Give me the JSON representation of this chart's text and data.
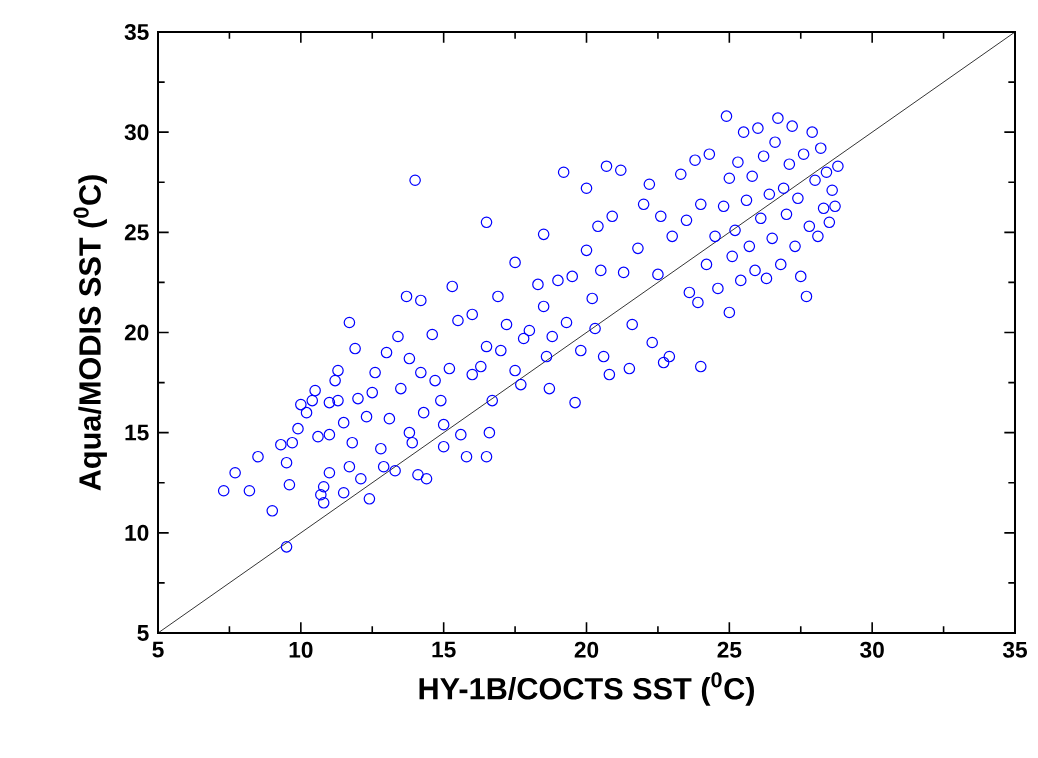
{
  "chart_data": {
    "type": "scatter",
    "xlabel": "HY-1B/COCTS SST ($^{0}$C)",
    "ylabel": "Aqua/MODIS SST ($^{0}$C)",
    "xlim": [
      5,
      35
    ],
    "ylim": [
      5,
      35
    ],
    "xticks": [
      5,
      10,
      15,
      20,
      25,
      30,
      35
    ],
    "yticks": [
      5,
      10,
      15,
      20,
      25,
      30,
      35
    ],
    "marker": "circle",
    "grid": false,
    "series": [
      {
        "color": "#0000ff",
        "x": [
          7.3,
          7.7,
          8.2,
          8.5,
          9.0,
          9.3,
          9.5,
          9.5,
          9.6,
          9.7,
          9.9,
          10.0,
          10.2,
          10.4,
          10.5,
          10.6,
          10.7,
          10.8,
          10.8,
          11.0,
          11.0,
          11.0,
          11.2,
          11.3,
          11.3,
          11.5,
          11.5,
          11.7,
          11.7,
          11.8,
          11.9,
          12.0,
          12.1,
          12.3,
          12.4,
          12.5,
          12.6,
          12.8,
          12.9,
          13.0,
          13.1,
          13.3,
          13.4,
          13.5,
          13.7,
          13.8,
          13.8,
          13.9,
          14.0,
          14.1,
          14.2,
          14.2,
          14.3,
          14.4,
          14.6,
          14.7,
          14.9,
          15.0,
          15.0,
          15.2,
          15.3,
          15.5,
          15.6,
          15.8,
          16.0,
          16.0,
          16.3,
          16.5,
          16.5,
          16.5,
          16.6,
          16.7,
          16.9,
          17.0,
          17.2,
          17.5,
          17.5,
          17.7,
          17.8,
          18.0,
          18.3,
          18.5,
          18.5,
          18.6,
          18.7,
          18.8,
          19.0,
          19.2,
          19.3,
          19.5,
          19.6,
          19.8,
          20.0,
          20.0,
          20.2,
          20.3,
          20.4,
          20.5,
          20.6,
          20.7,
          20.8,
          20.9,
          21.2,
          21.3,
          21.5,
          21.6,
          21.8,
          22.0,
          22.2,
          22.3,
          22.5,
          22.6,
          22.7,
          22.9,
          23.0,
          23.3,
          23.5,
          23.6,
          23.8,
          23.9,
          24.0,
          24.0,
          24.2,
          24.3,
          24.5,
          24.6,
          24.8,
          24.9,
          25.0,
          25.0,
          25.1,
          25.2,
          25.3,
          25.4,
          25.5,
          25.6,
          25.7,
          25.8,
          25.9,
          26.0,
          26.1,
          26.2,
          26.3,
          26.4,
          26.5,
          26.6,
          26.7,
          26.8,
          26.9,
          27.0,
          27.1,
          27.2,
          27.3,
          27.4,
          27.5,
          27.6,
          27.7,
          27.8,
          27.9,
          28.0,
          28.1,
          28.2,
          28.3,
          28.4,
          28.5,
          28.6,
          28.7,
          28.8
        ],
        "values": [
          12.1,
          13.0,
          12.1,
          13.8,
          11.1,
          14.4,
          9.3,
          13.5,
          12.4,
          14.5,
          15.2,
          16.4,
          16.0,
          16.6,
          17.1,
          14.8,
          11.9,
          12.3,
          11.5,
          13.0,
          14.9,
          16.5,
          17.6,
          18.1,
          16.6,
          12.0,
          15.5,
          20.5,
          13.3,
          14.5,
          19.2,
          16.7,
          12.7,
          15.8,
          11.7,
          17.0,
          18.0,
          14.2,
          13.3,
          19.0,
          15.7,
          13.1,
          19.8,
          17.2,
          21.8,
          18.7,
          15.0,
          14.5,
          27.6,
          12.9,
          21.6,
          18.0,
          16.0,
          12.7,
          19.9,
          17.6,
          16.6,
          15.4,
          14.3,
          18.2,
          22.3,
          20.6,
          14.9,
          13.8,
          17.9,
          20.9,
          18.3,
          25.5,
          19.3,
          13.8,
          15.0,
          16.6,
          21.8,
          19.1,
          20.4,
          23.5,
          18.1,
          17.4,
          19.7,
          20.1,
          22.4,
          24.9,
          21.3,
          18.8,
          17.2,
          19.8,
          22.6,
          28.0,
          20.5,
          22.8,
          16.5,
          19.1,
          24.1,
          27.2,
          21.7,
          20.2,
          25.3,
          23.1,
          18.8,
          28.3,
          17.9,
          25.8,
          28.1,
          23.0,
          18.2,
          20.4,
          24.2,
          26.4,
          27.4,
          19.5,
          22.9,
          25.8,
          18.5,
          18.8,
          24.8,
          27.9,
          25.6,
          22.0,
          28.6,
          21.5,
          18.3,
          26.4,
          23.4,
          28.9,
          24.8,
          22.2,
          26.3,
          30.8,
          21.0,
          27.7,
          23.8,
          25.1,
          28.5,
          22.6,
          30.0,
          26.6,
          24.3,
          27.8,
          23.1,
          30.2,
          25.7,
          28.8,
          22.7,
          26.9,
          24.7,
          29.5,
          30.7,
          23.4,
          27.2,
          25.9,
          28.4,
          30.3,
          24.3,
          26.7,
          22.8,
          28.9,
          21.8,
          25.3,
          30.0,
          27.6,
          24.8,
          29.2,
          26.2,
          28.0,
          25.5,
          27.1,
          26.3,
          28.3
        ]
      },
      {
        "type": "line",
        "color": "#000000",
        "marker": "none",
        "x": [
          5,
          35
        ],
        "values": [
          5,
          35
        ]
      }
    ]
  }
}
